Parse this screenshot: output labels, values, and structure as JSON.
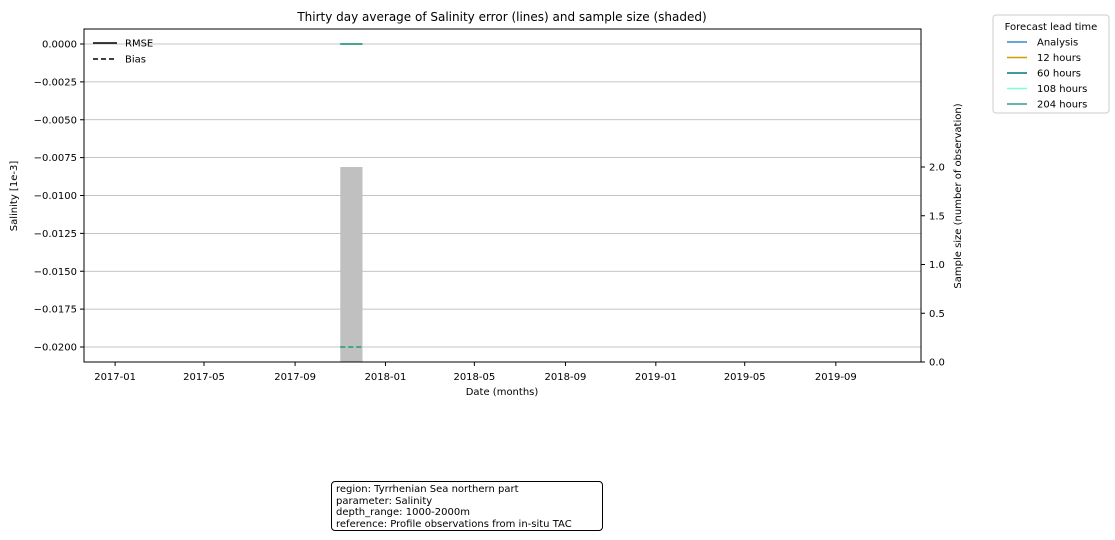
{
  "chart_data": {
    "type": "line",
    "title": "Thirty day average of Salinity error (lines) and sample size (shaded)",
    "xlabel": "Date (months)",
    "ylabel": "Salinity [1e-3]",
    "y2label": "Sample size (number of observation)",
    "x_ticks": [
      "2017-01",
      "2017-05",
      "2017-09",
      "2018-01",
      "2018-05",
      "2018-09",
      "2019-01",
      "2019-05",
      "2019-09"
    ],
    "xlim": [
      "2016-11-20",
      "2019-12-25"
    ],
    "ylim": [
      -0.021,
      0.001
    ],
    "y_ticks": [
      "0.0000",
      "−0.0025",
      "−0.0050",
      "−0.0075",
      "−0.0100",
      "−0.0125",
      "−0.0150",
      "−0.0175",
      "−0.0200"
    ],
    "y_tick_values": [
      0.0,
      -0.0025,
      -0.005,
      -0.0075,
      -0.01,
      -0.0125,
      -0.015,
      -0.0175,
      -0.02
    ],
    "y2lim": [
      0,
      2.0
    ],
    "y2_ticks": [
      "0.0",
      "0.5",
      "1.0",
      "1.5",
      "2.0"
    ],
    "y2_tick_values": [
      0.0,
      0.5,
      1.0,
      1.5,
      2.0
    ],
    "grid": "horizontal",
    "line_style_legend": {
      "placement": "top-left",
      "entries": [
        {
          "label": "RMSE",
          "style": "solid"
        },
        {
          "label": "Bias",
          "style": "dashed"
        }
      ]
    },
    "legend": {
      "title": "Forecast lead time",
      "placement": "outside-right",
      "entries": [
        {
          "label": "Analysis",
          "color": "#3a86c8"
        },
        {
          "label": "12 hours",
          "color": "#c8a000"
        },
        {
          "label": "60 hours",
          "color": "#007878"
        },
        {
          "label": "108 hours",
          "color": "#7fffd4"
        },
        {
          "label": "204 hours",
          "color": "#3a9a8a"
        }
      ]
    },
    "sample_size_bar": {
      "x_start": "2017-11-01",
      "x_end": "2017-12-01",
      "value": 2.0,
      "color": "#c0c0c0"
    },
    "rmse": {
      "x_start": "2017-11-01",
      "x_end": "2017-12-01",
      "value": 0.0
    },
    "bias": {
      "x_start": "2017-11-01",
      "x_end": "2017-12-01",
      "value": -0.02
    }
  },
  "info": {
    "region": "region: Tyrrhenian Sea northern part",
    "parameter": "parameter: Salinity",
    "depth_range": "depth_range: 1000-2000m",
    "reference": "reference: Profile observations from in-situ TAC"
  }
}
